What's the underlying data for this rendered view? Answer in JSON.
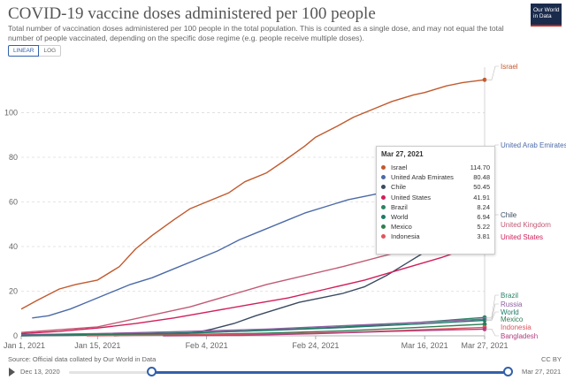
{
  "title": "COVID-19 vaccine doses administered per 100 people",
  "subtitle": "Total number of vaccination doses administered per 100 people in the total population. This is counted as a single dose, and may not equal the total number of people vaccinated, depending on the specific dose regime (e.g. people receive multiple doses).",
  "logo": {
    "line1": "Our World",
    "line2": "in Data"
  },
  "scale_toggle": {
    "linear": "LINEAR",
    "log": "LOG",
    "active": "LINEAR"
  },
  "source": "Source: Official data collated by Our World in Data",
  "license": "CC BY",
  "timeline": {
    "start": "Dec 13, 2020",
    "end": "Mar 27, 2021",
    "selected_start_fraction": 0.19,
    "selected_end_fraction": 1.0
  },
  "tooltip": {
    "date": "Mar 27, 2021",
    "rows": [
      {
        "name": "Israel",
        "value": "114.70",
        "color": "#c15a2e"
      },
      {
        "name": "United Arab Emirates",
        "value": "80.48",
        "color": "#4c6aa7"
      },
      {
        "name": "Chile",
        "value": "50.45",
        "color": "#3a4a62"
      },
      {
        "name": "United States",
        "value": "41.91",
        "color": "#d11f5b"
      },
      {
        "name": "Brazil",
        "value": "8.24",
        "color": "#2b8465"
      },
      {
        "name": "World",
        "value": "6.94",
        "color": "#1d7a6a"
      },
      {
        "name": "Mexico",
        "value": "5.22",
        "color": "#2f7e55"
      },
      {
        "name": "Indonesia",
        "value": "3.81",
        "color": "#e0555e"
      }
    ]
  },
  "chart_data": {
    "type": "line",
    "title": "COVID-19 vaccine doses administered per 100 people",
    "xlabel": "",
    "ylabel": "",
    "x_ticks": [
      "Jan 1, 2021",
      "Jan 15, 2021",
      "Feb 4, 2021",
      "Feb 24, 2021",
      "Mar 16, 2021",
      "Mar 27, 2021"
    ],
    "y_ticks": [
      0,
      20,
      40,
      60,
      80,
      100
    ],
    "xlim": [
      "2021-01-01",
      "2021-03-27"
    ],
    "ylim": [
      0,
      118
    ],
    "grid": "horizontal dashed",
    "series": [
      {
        "name": "Israel",
        "color": "#c15a2e",
        "x": [
          "2021-01-01",
          "2021-01-04",
          "2021-01-08",
          "2021-01-11",
          "2021-01-15",
          "2021-01-19",
          "2021-01-22",
          "2021-01-25",
          "2021-01-29",
          "2021-02-01",
          "2021-02-04",
          "2021-02-08",
          "2021-02-11",
          "2021-02-15",
          "2021-02-18",
          "2021-02-22",
          "2021-02-24",
          "2021-02-28",
          "2021-03-03",
          "2021-03-07",
          "2021-03-10",
          "2021-03-14",
          "2021-03-16",
          "2021-03-20",
          "2021-03-23",
          "2021-03-27"
        ],
        "y": [
          12,
          16,
          21,
          23,
          25,
          31,
          39,
          45,
          52,
          57,
          60,
          64,
          69,
          73,
          78,
          85,
          89,
          94,
          98,
          102,
          105,
          108,
          109,
          112,
          113.5,
          114.7
        ]
      },
      {
        "name": "United Arab Emirates",
        "color": "#4c6aa7",
        "x": [
          "2021-01-03",
          "2021-01-06",
          "2021-01-10",
          "2021-01-13",
          "2021-01-17",
          "2021-01-21",
          "2021-01-25",
          "2021-01-29",
          "2021-02-02",
          "2021-02-06",
          "2021-02-10",
          "2021-02-14",
          "2021-02-18",
          "2021-02-22",
          "2021-02-26",
          "2021-03-02",
          "2021-03-06",
          "2021-03-10",
          "2021-03-14",
          "2021-03-18",
          "2021-03-22",
          "2021-03-27"
        ],
        "y": [
          8,
          9,
          12,
          15,
          19,
          23,
          26,
          30,
          34,
          38,
          43,
          47,
          51,
          55,
          58,
          61,
          63,
          65,
          67,
          72,
          76,
          80.48
        ]
      },
      {
        "name": "Chile",
        "color": "#3a4a62",
        "x": [
          "2021-01-01",
          "2021-01-15",
          "2021-01-29",
          "2021-02-02",
          "2021-02-05",
          "2021-02-09",
          "2021-02-13",
          "2021-02-17",
          "2021-02-21",
          "2021-02-25",
          "2021-03-01",
          "2021-03-05",
          "2021-03-09",
          "2021-03-13",
          "2021-03-17",
          "2021-03-21",
          "2021-03-27"
        ],
        "y": [
          0,
          0.3,
          0.5,
          1.5,
          3,
          5.5,
          9,
          12,
          15,
          17,
          19,
          22,
          27,
          33,
          39,
          45,
          50.45
        ]
      },
      {
        "name": "United States",
        "color": "#d11f5b",
        "x": [
          "2021-01-01",
          "2021-01-08",
          "2021-01-15",
          "2021-01-22",
          "2021-01-29",
          "2021-02-05",
          "2021-02-12",
          "2021-02-19",
          "2021-02-26",
          "2021-03-05",
          "2021-03-12",
          "2021-03-19",
          "2021-03-27"
        ],
        "y": [
          1,
          2,
          3.5,
          5.5,
          8,
          11,
          14,
          17,
          21,
          25,
          30,
          35,
          41.91
        ]
      },
      {
        "name": "Brazil",
        "color": "#2b8465",
        "x": [
          "2021-01-18",
          "2021-02-01",
          "2021-02-15",
          "2021-03-01",
          "2021-03-15",
          "2021-03-27"
        ],
        "y": [
          0,
          1.2,
          2.5,
          4,
          6,
          8.24
        ]
      },
      {
        "name": "Russia",
        "color": "#8e5ea2",
        "x": [
          "2021-01-01",
          "2021-01-15",
          "2021-02-01",
          "2021-02-15",
          "2021-03-01",
          "2021-03-15",
          "2021-03-27"
        ],
        "y": [
          0.5,
          1,
          2,
          3,
          4.5,
          6,
          7.5
        ]
      },
      {
        "name": "World",
        "color": "#1d7a6a",
        "x": [
          "2021-01-01",
          "2021-01-15",
          "2021-02-01",
          "2021-02-15",
          "2021-03-01",
          "2021-03-15",
          "2021-03-27"
        ],
        "y": [
          0.2,
          0.6,
          1.4,
          2.4,
          3.7,
          5.3,
          6.94
        ]
      },
      {
        "name": "Mexico",
        "color": "#2f7e55",
        "x": [
          "2021-01-01",
          "2021-01-15",
          "2021-02-01",
          "2021-02-15",
          "2021-03-01",
          "2021-03-15",
          "2021-03-27"
        ],
        "y": [
          0.05,
          0.4,
          0.6,
          1.2,
          2.2,
          3.8,
          5.22
        ]
      },
      {
        "name": "Indonesia",
        "color": "#e0555e",
        "x": [
          "2021-01-13",
          "2021-02-01",
          "2021-02-15",
          "2021-03-01",
          "2021-03-15",
          "2021-03-27"
        ],
        "y": [
          0,
          0.4,
          0.8,
          1.5,
          2.7,
          3.81
        ]
      },
      {
        "name": "Bangladesh",
        "color": "#b13f7f",
        "x": [
          "2021-01-27",
          "2021-02-10",
          "2021-02-24",
          "2021-03-10",
          "2021-03-27"
        ],
        "y": [
          0,
          0.2,
          1,
          2,
          3
        ]
      },
      {
        "name": "United Kingdom",
        "color": "#c05a74",
        "x": [
          "2021-01-01",
          "2021-01-15",
          "2021-02-01",
          "2021-02-15",
          "2021-03-01",
          "2021-03-15",
          "2021-03-27"
        ],
        "y": [
          1.5,
          4,
          13,
          23,
          31,
          40,
          49
        ]
      }
    ],
    "end_labels": [
      "Israel",
      "United Arab Emirates",
      "Chile",
      "United Kingdom",
      "United States",
      "Brazil",
      "Russia",
      "World",
      "Mexico",
      "Indonesia",
      "Bangladesh"
    ],
    "hover_date": "2021-03-27"
  }
}
